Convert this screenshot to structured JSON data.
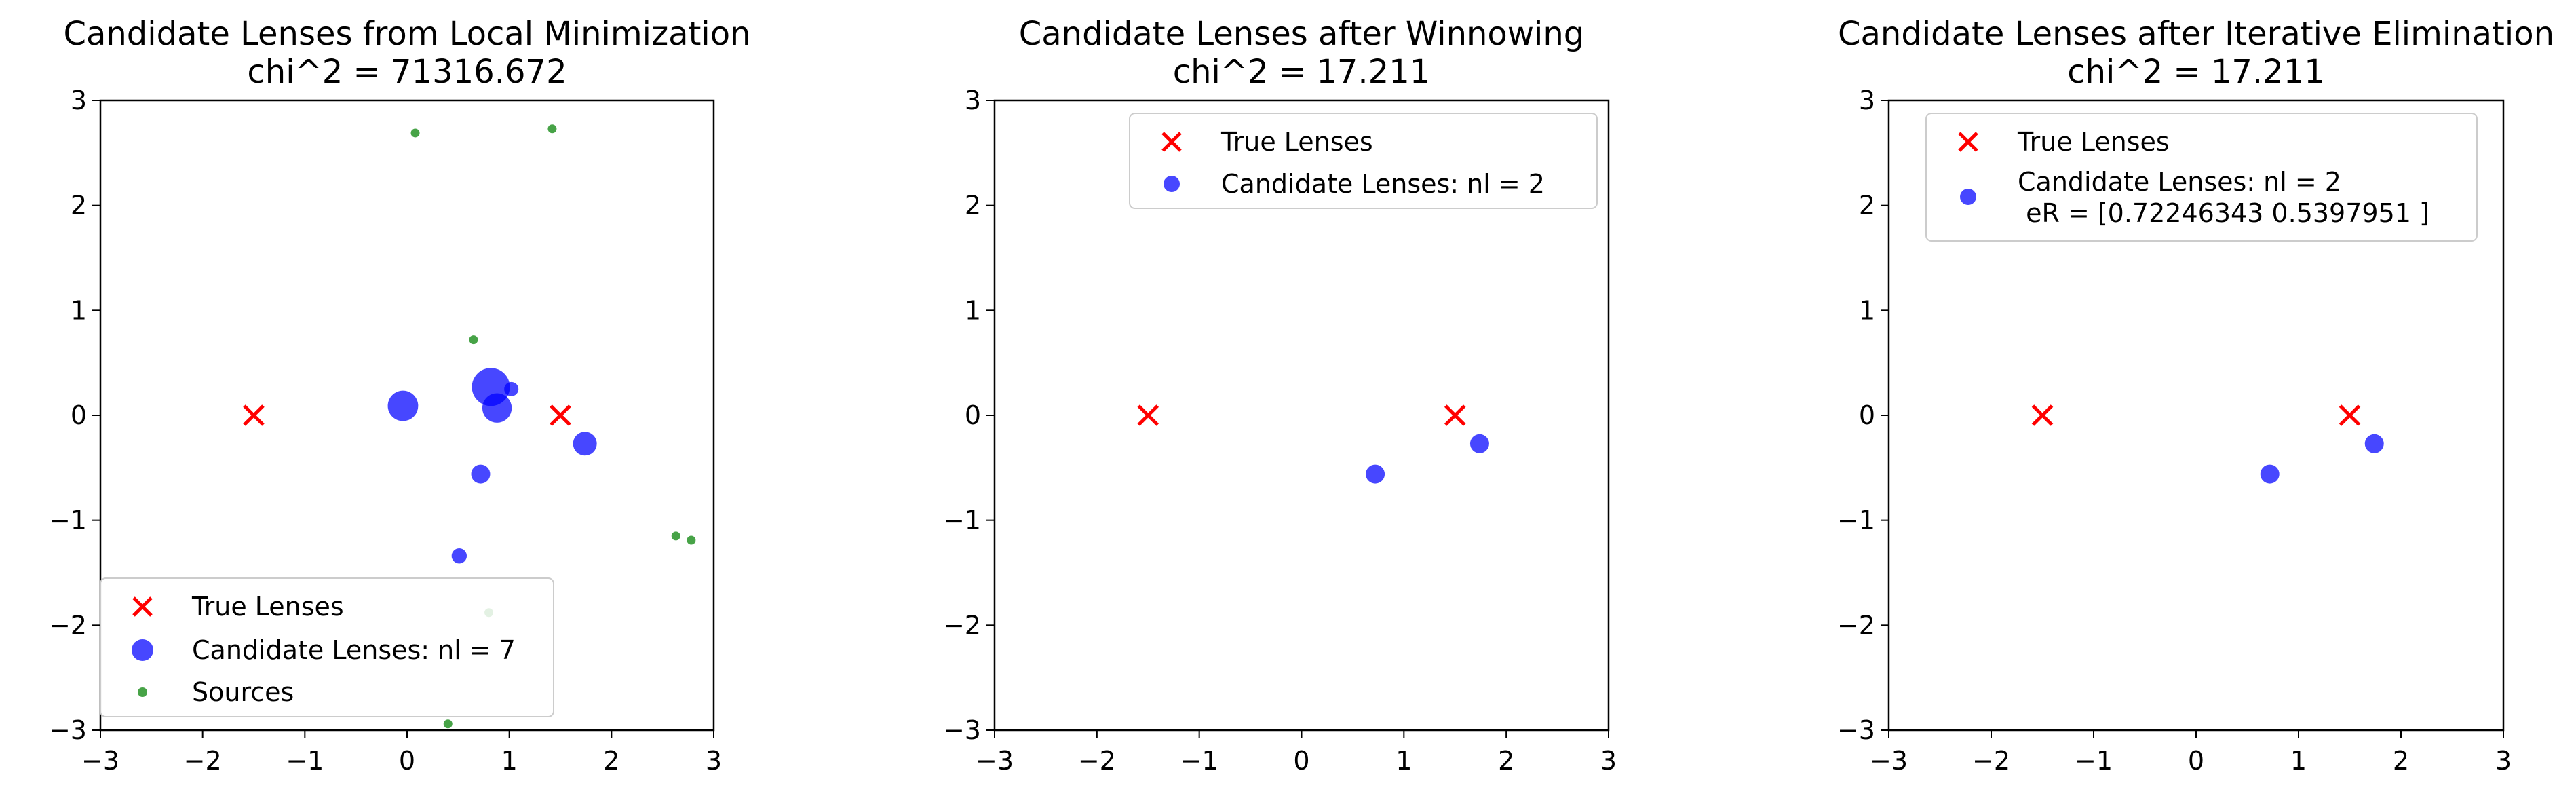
{
  "chart_data": [
    {
      "type": "scatter",
      "title": "Candidate Lenses from Local Minimization",
      "subtitle": "chi^2 = 71316.672",
      "xlim": [
        -3,
        3
      ],
      "ylim": [
        -3,
        3
      ],
      "xticks": [
        "−3",
        "−2",
        "−1",
        "0",
        "1",
        "2",
        "3"
      ],
      "yticks": [
        "−3",
        "−2",
        "−1",
        "0",
        "1",
        "2",
        "3"
      ],
      "legend_position": "lower-left",
      "series": [
        {
          "name": "True Lenses",
          "marker": "x",
          "color": "#ff0000",
          "points": [
            {
              "x": -1.5,
              "y": 0
            },
            {
              "x": 1.5,
              "y": 0
            }
          ]
        },
        {
          "name": "Candidate Lenses: nl = 7",
          "marker": "circle",
          "color": "#0000ff",
          "alpha": 0.72,
          "points": [
            {
              "x": -0.04,
              "y": 0.09,
              "size": 3.2
            },
            {
              "x": 0.82,
              "y": 0.27,
              "size": 4.0
            },
            {
              "x": 0.88,
              "y": 0.07,
              "size": 3.1
            },
            {
              "x": 1.02,
              "y": 0.25,
              "size": 1.5
            },
            {
              "x": 1.74,
              "y": -0.27,
              "size": 2.5
            },
            {
              "x": 0.72,
              "y": -0.56,
              "size": 2.0
            },
            {
              "x": 0.51,
              "y": -1.34,
              "size": 1.6
            }
          ]
        },
        {
          "name": "Sources",
          "marker": "circle",
          "color": "#008000",
          "alpha": 0.72,
          "points": [
            {
              "x": 0.08,
              "y": 2.69
            },
            {
              "x": 1.42,
              "y": 2.73
            },
            {
              "x": 0.65,
              "y": 0.72
            },
            {
              "x": 2.63,
              "y": -1.15
            },
            {
              "x": 2.78,
              "y": -1.19
            },
            {
              "x": 0.8,
              "y": -1.88
            },
            {
              "x": 0.4,
              "y": -2.94
            }
          ]
        }
      ]
    },
    {
      "type": "scatter",
      "title": "Candidate Lenses after Winnowing",
      "subtitle": "chi^2 = 17.211",
      "xlim": [
        -3,
        3
      ],
      "ylim": [
        -3,
        3
      ],
      "xticks": [
        "−3",
        "−2",
        "−1",
        "0",
        "1",
        "2",
        "3"
      ],
      "yticks": [
        "−3",
        "−2",
        "−1",
        "0",
        "1",
        "2",
        "3"
      ],
      "legend_position": "top-right",
      "series": [
        {
          "name": "True Lenses",
          "marker": "x",
          "color": "#ff0000",
          "points": [
            {
              "x": -1.5,
              "y": 0
            },
            {
              "x": 1.5,
              "y": 0
            }
          ]
        },
        {
          "name": "Candidate Lenses: nl = 2",
          "marker": "circle",
          "color": "#0000ff",
          "alpha": 0.72,
          "points": [
            {
              "x": 0.72,
              "y": -0.56,
              "size": 2.0
            },
            {
              "x": 1.74,
              "y": -0.27,
              "size": 2.0
            }
          ]
        }
      ]
    },
    {
      "type": "scatter",
      "title": "Candidate Lenses after Iterative Elimination",
      "subtitle": "chi^2 = 17.211",
      "xlim": [
        -3,
        3
      ],
      "ylim": [
        -3,
        3
      ],
      "xticks": [
        "−3",
        "−2",
        "−1",
        "0",
        "1",
        "2",
        "3"
      ],
      "yticks": [
        "−3",
        "−2",
        "−1",
        "0",
        "1",
        "2",
        "3"
      ],
      "legend_position": "top-right",
      "series": [
        {
          "name": "True Lenses",
          "marker": "x",
          "color": "#ff0000",
          "points": [
            {
              "x": -1.5,
              "y": 0
            },
            {
              "x": 1.5,
              "y": 0
            }
          ]
        },
        {
          "name": "Candidate Lenses: nl = 2",
          "name_line2": " eR = [0.72246343 0.5397951 ]",
          "marker": "circle",
          "color": "#0000ff",
          "alpha": 0.72,
          "points": [
            {
              "x": 0.72,
              "y": -0.56,
              "size": 2.0
            },
            {
              "x": 1.74,
              "y": -0.27,
              "size": 2.0
            }
          ]
        }
      ]
    }
  ]
}
